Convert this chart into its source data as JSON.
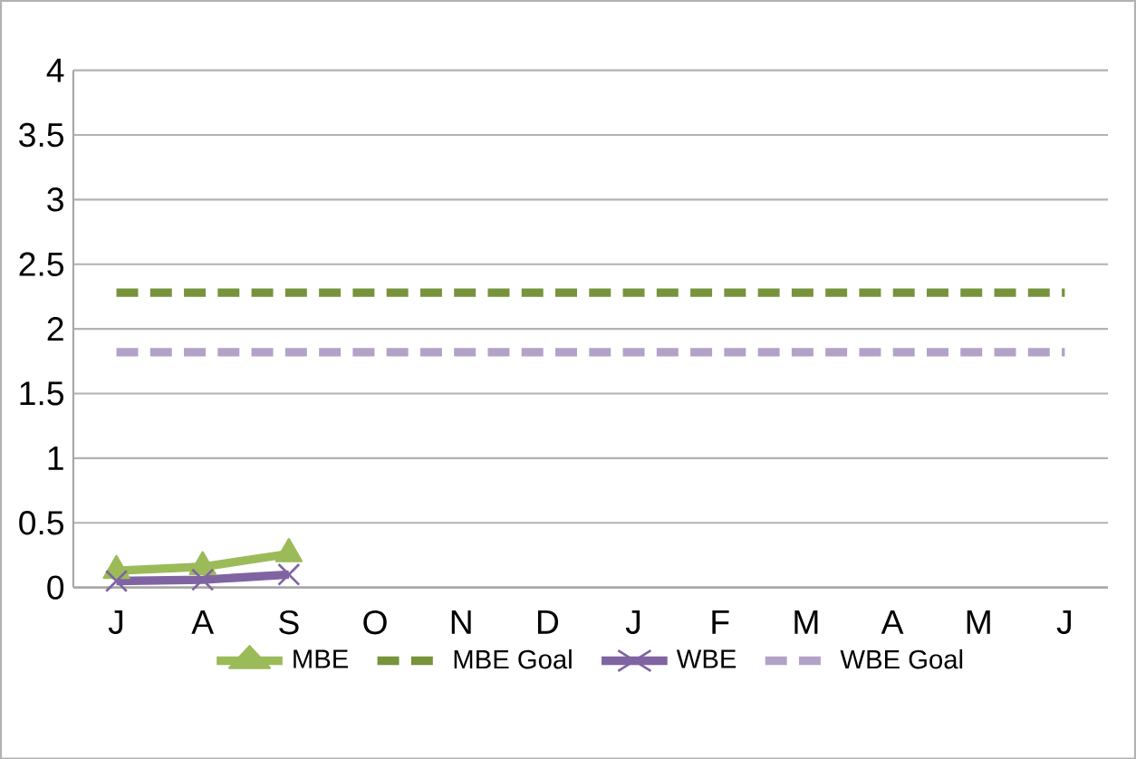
{
  "chart_data": {
    "type": "line",
    "categories": [
      "J",
      "A",
      "S",
      "O",
      "N",
      "D",
      "J",
      "F",
      "M",
      "A",
      "M",
      "J"
    ],
    "series": [
      {
        "name": "MBE",
        "color": "#9bbb59",
        "marker": "triangle",
        "line_style": "solid",
        "values": [
          0.13,
          0.16,
          0.26,
          null,
          null,
          null,
          null,
          null,
          null,
          null,
          null,
          null
        ]
      },
      {
        "name": "MBE Goal",
        "color": "#77933c",
        "marker": "none",
        "line_style": "dashed",
        "values": [
          2.28,
          2.28,
          2.28,
          2.28,
          2.28,
          2.28,
          2.28,
          2.28,
          2.28,
          2.28,
          2.28,
          2.28
        ]
      },
      {
        "name": "WBE",
        "color": "#8064a2",
        "marker": "cross",
        "line_style": "solid",
        "values": [
          0.05,
          0.06,
          0.1,
          null,
          null,
          null,
          null,
          null,
          null,
          null,
          null,
          null
        ]
      },
      {
        "name": "WBE Goal",
        "color": "#b3a2c7",
        "marker": "none",
        "line_style": "dashed",
        "values": [
          1.82,
          1.82,
          1.82,
          1.82,
          1.82,
          1.82,
          1.82,
          1.82,
          1.82,
          1.82,
          1.82,
          1.82
        ]
      }
    ],
    "ylim": [
      0,
      4
    ],
    "yticks": [
      0,
      0.5,
      1,
      1.5,
      2,
      2.5,
      3,
      3.5,
      4
    ],
    "grid": "y",
    "legend": "bottom"
  }
}
